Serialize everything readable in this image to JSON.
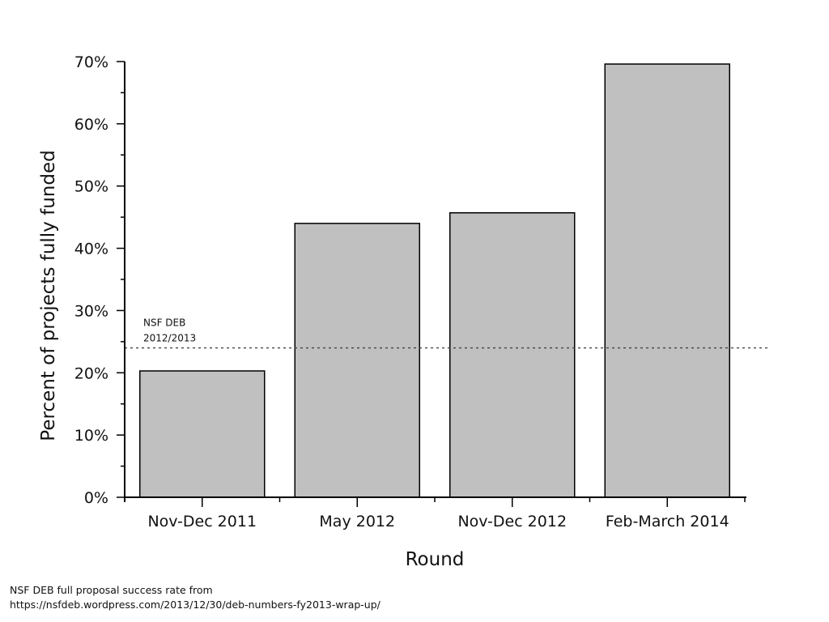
{
  "chart_data": {
    "type": "bar",
    "categories": [
      "Nov-Dec 2011",
      "May 2012",
      "Nov-Dec 2012",
      "Feb-March 2014"
    ],
    "values": [
      20.3,
      44.0,
      45.7,
      69.6
    ],
    "xlabel": "Round",
    "ylabel": "Percent of projects fully funded",
    "ylim": [
      0,
      70
    ],
    "yticks": [
      0,
      10,
      20,
      30,
      40,
      50,
      60,
      70
    ],
    "ytick_labels": [
      "0%",
      "10%",
      "20%",
      "30%",
      "40%",
      "50%",
      "60%",
      "70%"
    ],
    "bar_color": "#c0c0c0",
    "bar_edge_color": "#000000",
    "grid": false,
    "reference_line": {
      "value": 24,
      "style": "dotted",
      "label_lines": [
        "NSF DEB",
        "2012/2013"
      ]
    }
  },
  "footnote": {
    "line1": "NSF DEB full proposal success rate from",
    "line2": "https://nsfdeb.wordpress.com/2013/12/30/deb-numbers-fy2013-wrap-up/"
  }
}
